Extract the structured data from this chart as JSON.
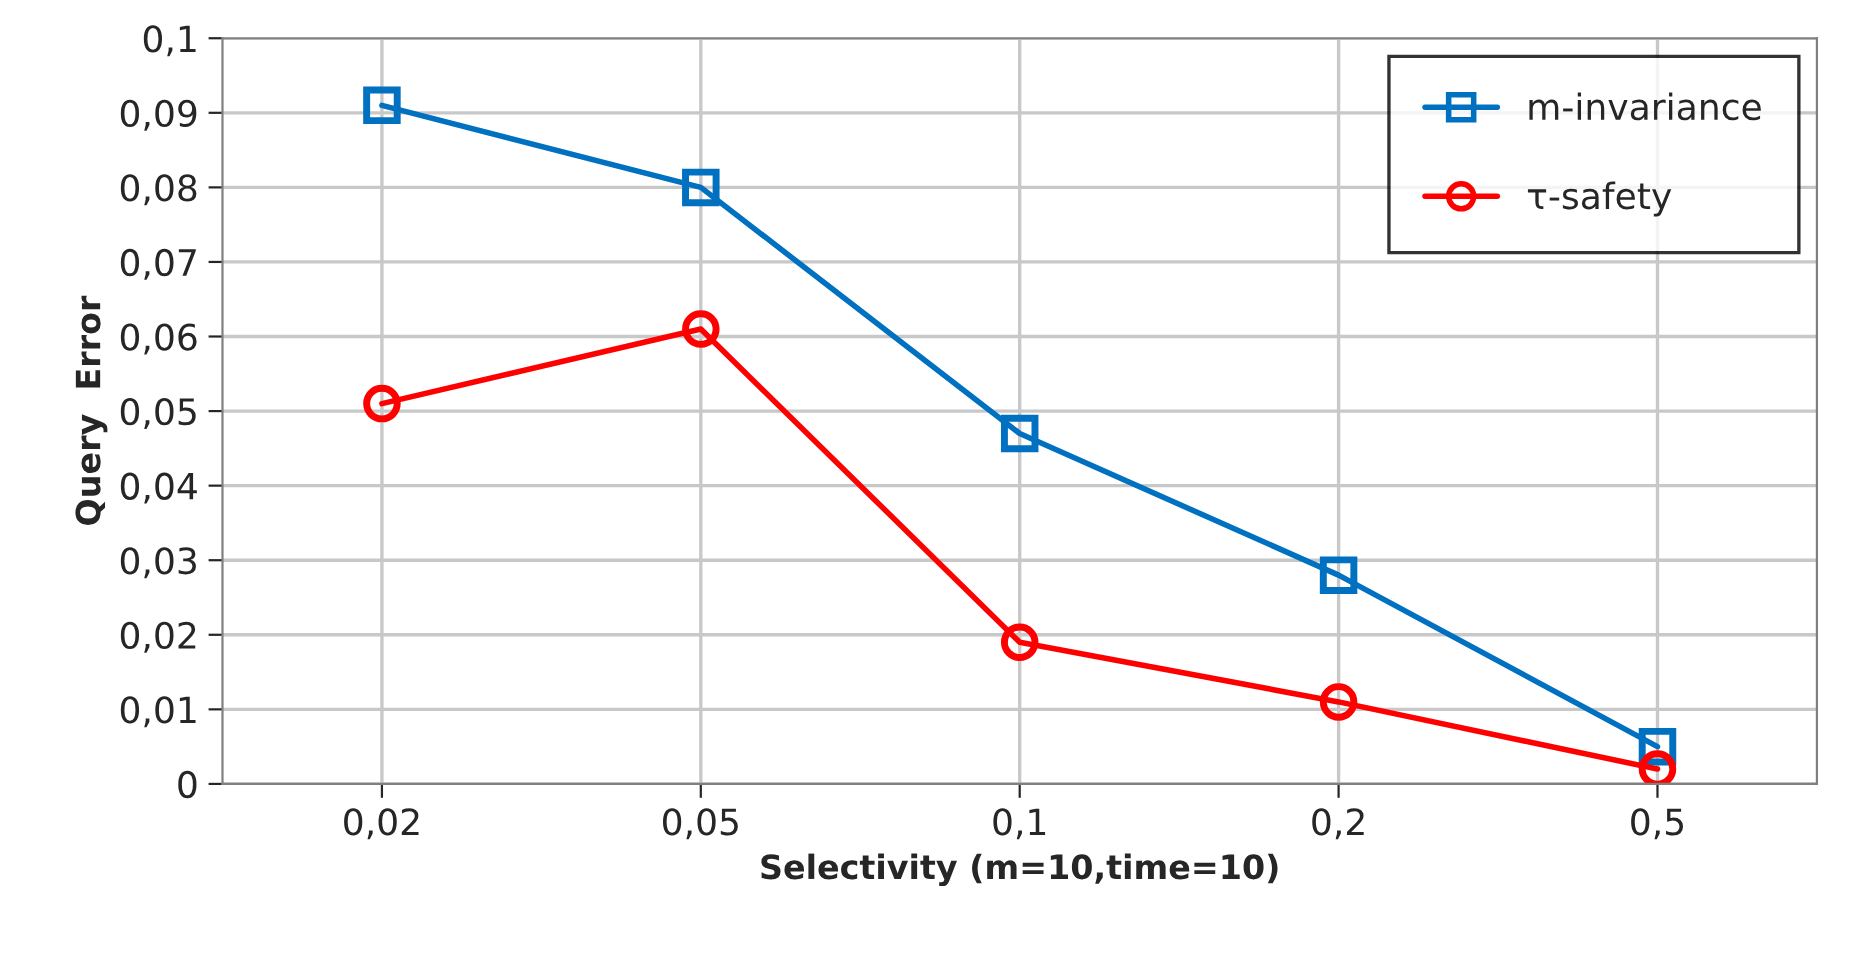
{
  "chart_data": {
    "type": "line",
    "xlabel": "Selectivity (m=10,time=10)",
    "ylabel": "Query  Error",
    "categories": [
      "0,02",
      "0,05",
      "0,1",
      "0,2",
      "0,5"
    ],
    "series": [
      {
        "name": "m-invariance",
        "color": "#0070c0",
        "marker": "square",
        "values": [
          0.091,
          0.08,
          0.047,
          0.028,
          0.005
        ]
      },
      {
        "name": "τ-safety",
        "color": "#ff0000",
        "marker": "circle",
        "values": [
          0.051,
          0.061,
          0.019,
          0.011,
          0.002
        ]
      }
    ],
    "ylim": [
      0,
      0.1
    ],
    "yticks": [
      0,
      {
        "value": 0.01,
        "label": "0,01"
      },
      {
        "value": 0.02,
        "label": "0,02"
      },
      {
        "value": 0.03,
        "label": "0,03"
      },
      {
        "value": 0.04,
        "label": "0,04"
      },
      {
        "value": 0.05,
        "label": "0,05"
      },
      {
        "value": 0.06,
        "label": "0,06"
      },
      {
        "value": 0.07,
        "label": "0,07"
      },
      {
        "value": 0.08,
        "label": "0,08"
      },
      {
        "value": 0.09,
        "label": "0,09"
      },
      {
        "value": 0.1,
        "label": "0,1"
      }
    ],
    "grid": true,
    "legend": "top right",
    "line_style": "solid"
  }
}
